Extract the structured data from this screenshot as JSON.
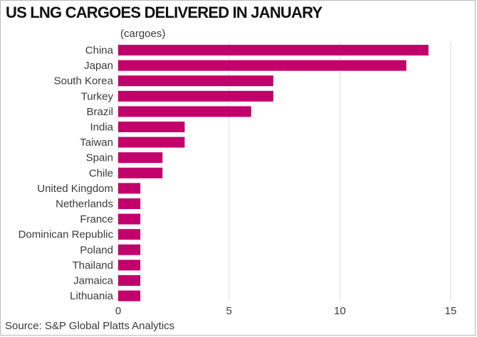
{
  "chart_data": {
    "type": "bar",
    "orientation": "horizontal",
    "title": "US LNG CARGOES DELIVERED IN JANUARY",
    "unit_label": "(cargoes)",
    "categories": [
      "China",
      "Japan",
      "South Korea",
      "Turkey",
      "Brazil",
      "India",
      "Taiwan",
      "Spain",
      "Chile",
      "United Kingdom",
      "Netherlands",
      "France",
      "Dominican Republic",
      "Poland",
      "Thailand",
      "Jamaica",
      "Lithuania"
    ],
    "values": [
      14,
      13,
      7,
      7,
      6,
      3,
      3,
      2,
      2,
      1,
      1,
      1,
      1,
      1,
      1,
      1,
      1
    ],
    "xlim": [
      0,
      15
    ],
    "xticks": [
      0,
      5,
      10,
      15
    ],
    "grid": true,
    "bar_color": "#c2006b",
    "source": "Source: S&P Global Platts Analytics"
  }
}
